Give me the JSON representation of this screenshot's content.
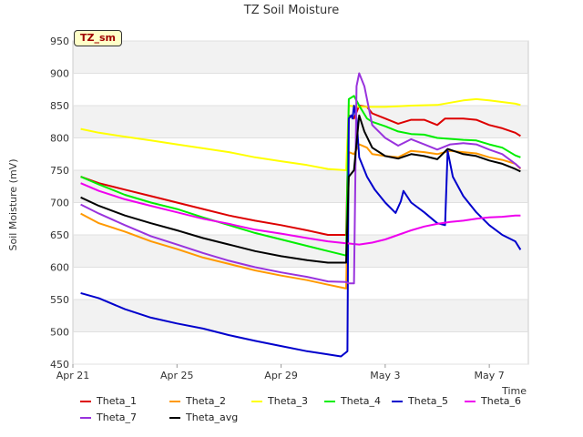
{
  "chart_data": {
    "type": "line",
    "title": "TZ Soil Moisture",
    "site_tag": "TZ_sm",
    "xlabel": "Time",
    "ylabel": "Soil Moisture (mV)",
    "ylim": [
      450,
      950
    ],
    "yticks": [
      450,
      500,
      550,
      600,
      650,
      700,
      750,
      800,
      850,
      900,
      950
    ],
    "xlim_days": [
      0,
      17.5
    ],
    "xticks": [
      {
        "label": "Apr 21",
        "day": 0
      },
      {
        "label": "Apr 25",
        "day": 4
      },
      {
        "label": "Apr 29",
        "day": 8
      },
      {
        "label": "May 3",
        "day": 12
      },
      {
        "label": "May 7",
        "day": 16
      }
    ],
    "series": [
      {
        "name": "Theta_1",
        "color": "#dd0000",
        "points": [
          [
            0.3,
            740
          ],
          [
            1,
            730
          ],
          [
            2,
            720
          ],
          [
            3,
            710
          ],
          [
            4,
            700
          ],
          [
            5,
            690
          ],
          [
            6,
            680
          ],
          [
            7,
            672
          ],
          [
            8,
            665
          ],
          [
            9,
            657
          ],
          [
            9.8,
            650
          ],
          [
            10.5,
            650
          ],
          [
            10.6,
            835
          ],
          [
            10.8,
            830
          ],
          [
            11,
            850
          ],
          [
            11.3,
            848
          ],
          [
            11.5,
            838
          ],
          [
            12,
            830
          ],
          [
            12.5,
            822
          ],
          [
            13,
            828
          ],
          [
            13.5,
            828
          ],
          [
            14,
            820
          ],
          [
            14.3,
            830
          ],
          [
            15,
            830
          ],
          [
            15.5,
            828
          ],
          [
            16,
            820
          ],
          [
            16.5,
            815
          ],
          [
            17,
            808
          ],
          [
            17.2,
            803
          ]
        ]
      },
      {
        "name": "Theta_2",
        "color": "#ff9900",
        "points": [
          [
            0.3,
            683
          ],
          [
            1,
            668
          ],
          [
            2,
            655
          ],
          [
            3,
            640
          ],
          [
            4,
            628
          ],
          [
            5,
            615
          ],
          [
            6,
            605
          ],
          [
            7,
            595
          ],
          [
            8,
            587
          ],
          [
            9,
            580
          ],
          [
            9.8,
            573
          ],
          [
            10.5,
            567
          ],
          [
            10.6,
            778
          ],
          [
            10.8,
            775
          ],
          [
            11,
            790
          ],
          [
            11.3,
            785
          ],
          [
            11.5,
            775
          ],
          [
            12,
            772
          ],
          [
            12.5,
            770
          ],
          [
            13,
            780
          ],
          [
            13.5,
            778
          ],
          [
            14,
            775
          ],
          [
            14.5,
            780
          ],
          [
            15,
            778
          ],
          [
            15.5,
            776
          ],
          [
            16,
            770
          ],
          [
            16.5,
            766
          ],
          [
            17,
            760
          ],
          [
            17.2,
            752
          ]
        ]
      },
      {
        "name": "Theta_3",
        "color": "#ffff00",
        "points": [
          [
            0.3,
            814
          ],
          [
            1,
            808
          ],
          [
            2,
            802
          ],
          [
            3,
            796
          ],
          [
            4,
            790
          ],
          [
            5,
            784
          ],
          [
            6,
            778
          ],
          [
            7,
            770
          ],
          [
            8,
            764
          ],
          [
            9,
            758
          ],
          [
            9.8,
            752
          ],
          [
            10.5,
            750
          ],
          [
            10.6,
            850
          ],
          [
            11,
            848
          ],
          [
            12,
            848
          ],
          [
            13,
            850
          ],
          [
            14,
            851
          ],
          [
            15,
            858
          ],
          [
            15.5,
            860
          ],
          [
            16,
            858
          ],
          [
            17,
            853
          ],
          [
            17.2,
            851
          ]
        ]
      },
      {
        "name": "Theta_4",
        "color": "#00ee00",
        "points": [
          [
            0.3,
            740
          ],
          [
            1,
            728
          ],
          [
            2,
            712
          ],
          [
            3,
            700
          ],
          [
            4,
            690
          ],
          [
            5,
            677
          ],
          [
            6,
            665
          ],
          [
            7,
            653
          ],
          [
            8,
            643
          ],
          [
            9,
            633
          ],
          [
            9.8,
            625
          ],
          [
            10.5,
            618
          ],
          [
            10.6,
            860
          ],
          [
            10.8,
            865
          ],
          [
            11,
            850
          ],
          [
            11.3,
            830
          ],
          [
            11.5,
            825
          ],
          [
            12,
            818
          ],
          [
            12.5,
            810
          ],
          [
            13,
            806
          ],
          [
            13.5,
            805
          ],
          [
            14,
            800
          ],
          [
            15,
            797
          ],
          [
            15.5,
            796
          ],
          [
            16,
            790
          ],
          [
            16.5,
            785
          ],
          [
            17,
            773
          ],
          [
            17.2,
            770
          ]
        ]
      },
      {
        "name": "Theta_5",
        "color": "#0000cc",
        "points": [
          [
            0.3,
            560
          ],
          [
            1,
            552
          ],
          [
            2,
            535
          ],
          [
            3,
            522
          ],
          [
            4,
            513
          ],
          [
            5,
            505
          ],
          [
            6,
            495
          ],
          [
            7,
            486
          ],
          [
            8,
            478
          ],
          [
            9,
            470
          ],
          [
            9.8,
            465
          ],
          [
            10.3,
            462
          ],
          [
            10.55,
            470
          ],
          [
            10.6,
            830
          ],
          [
            10.7,
            835
          ],
          [
            10.75,
            830
          ],
          [
            10.8,
            850
          ],
          [
            10.9,
            830
          ],
          [
            11,
            770
          ],
          [
            11.3,
            740
          ],
          [
            11.6,
            720
          ],
          [
            12,
            700
          ],
          [
            12.4,
            684
          ],
          [
            12.6,
            702
          ],
          [
            12.7,
            718
          ],
          [
            13,
            700
          ],
          [
            13.5,
            685
          ],
          [
            14,
            668
          ],
          [
            14.3,
            665
          ],
          [
            14.4,
            780
          ],
          [
            14.6,
            740
          ],
          [
            15,
            710
          ],
          [
            15.5,
            685
          ],
          [
            16,
            665
          ],
          [
            16.5,
            650
          ],
          [
            17,
            640
          ],
          [
            17.2,
            627
          ]
        ]
      },
      {
        "name": "Theta_6",
        "color": "#ee00ee",
        "points": [
          [
            0.3,
            730
          ],
          [
            1,
            718
          ],
          [
            2,
            705
          ],
          [
            3,
            695
          ],
          [
            4,
            685
          ],
          [
            5,
            675
          ],
          [
            6,
            667
          ],
          [
            7,
            658
          ],
          [
            8,
            652
          ],
          [
            9,
            645
          ],
          [
            9.8,
            640
          ],
          [
            10.5,
            637
          ],
          [
            11,
            635
          ],
          [
            11.5,
            638
          ],
          [
            12,
            643
          ],
          [
            12.5,
            650
          ],
          [
            13,
            657
          ],
          [
            13.5,
            663
          ],
          [
            14,
            667
          ],
          [
            14.5,
            670
          ],
          [
            15,
            672
          ],
          [
            15.5,
            675
          ],
          [
            16,
            677
          ],
          [
            16.5,
            678
          ],
          [
            17,
            680
          ],
          [
            17.2,
            680
          ]
        ]
      },
      {
        "name": "Theta_7",
        "color": "#9933dd",
        "points": [
          [
            0.3,
            697
          ],
          [
            1,
            683
          ],
          [
            2,
            665
          ],
          [
            3,
            648
          ],
          [
            4,
            635
          ],
          [
            5,
            622
          ],
          [
            6,
            610
          ],
          [
            7,
            600
          ],
          [
            8,
            592
          ],
          [
            9,
            585
          ],
          [
            9.8,
            578
          ],
          [
            10.5,
            577
          ],
          [
            10.6,
            575
          ],
          [
            10.8,
            575
          ],
          [
            10.9,
            880
          ],
          [
            11,
            900
          ],
          [
            11.2,
            880
          ],
          [
            11.5,
            820
          ],
          [
            12,
            800
          ],
          [
            12.5,
            788
          ],
          [
            13,
            798
          ],
          [
            13.5,
            790
          ],
          [
            14,
            782
          ],
          [
            14.5,
            790
          ],
          [
            15,
            792
          ],
          [
            15.5,
            790
          ],
          [
            16,
            782
          ],
          [
            16.5,
            775
          ],
          [
            17,
            760
          ],
          [
            17.2,
            753
          ]
        ]
      },
      {
        "name": "Theta_avg",
        "color": "#000000",
        "points": [
          [
            0.3,
            708
          ],
          [
            1,
            695
          ],
          [
            2,
            680
          ],
          [
            3,
            668
          ],
          [
            4,
            657
          ],
          [
            5,
            645
          ],
          [
            6,
            635
          ],
          [
            7,
            625
          ],
          [
            8,
            617
          ],
          [
            9,
            611
          ],
          [
            9.8,
            607
          ],
          [
            10.5,
            607
          ],
          [
            10.6,
            740
          ],
          [
            10.8,
            750
          ],
          [
            11,
            835
          ],
          [
            11.2,
            810
          ],
          [
            11.5,
            785
          ],
          [
            12,
            772
          ],
          [
            12.5,
            768
          ],
          [
            13,
            775
          ],
          [
            13.5,
            772
          ],
          [
            14,
            767
          ],
          [
            14.4,
            783
          ],
          [
            15,
            775
          ],
          [
            15.5,
            772
          ],
          [
            16,
            765
          ],
          [
            16.5,
            760
          ],
          [
            17,
            752
          ],
          [
            17.2,
            748
          ]
        ]
      }
    ]
  },
  "legend": {
    "entries": [
      "Theta_1",
      "Theta_2",
      "Theta_3",
      "Theta_4",
      "Theta_5",
      "Theta_6",
      "Theta_7",
      "Theta_avg"
    ]
  }
}
